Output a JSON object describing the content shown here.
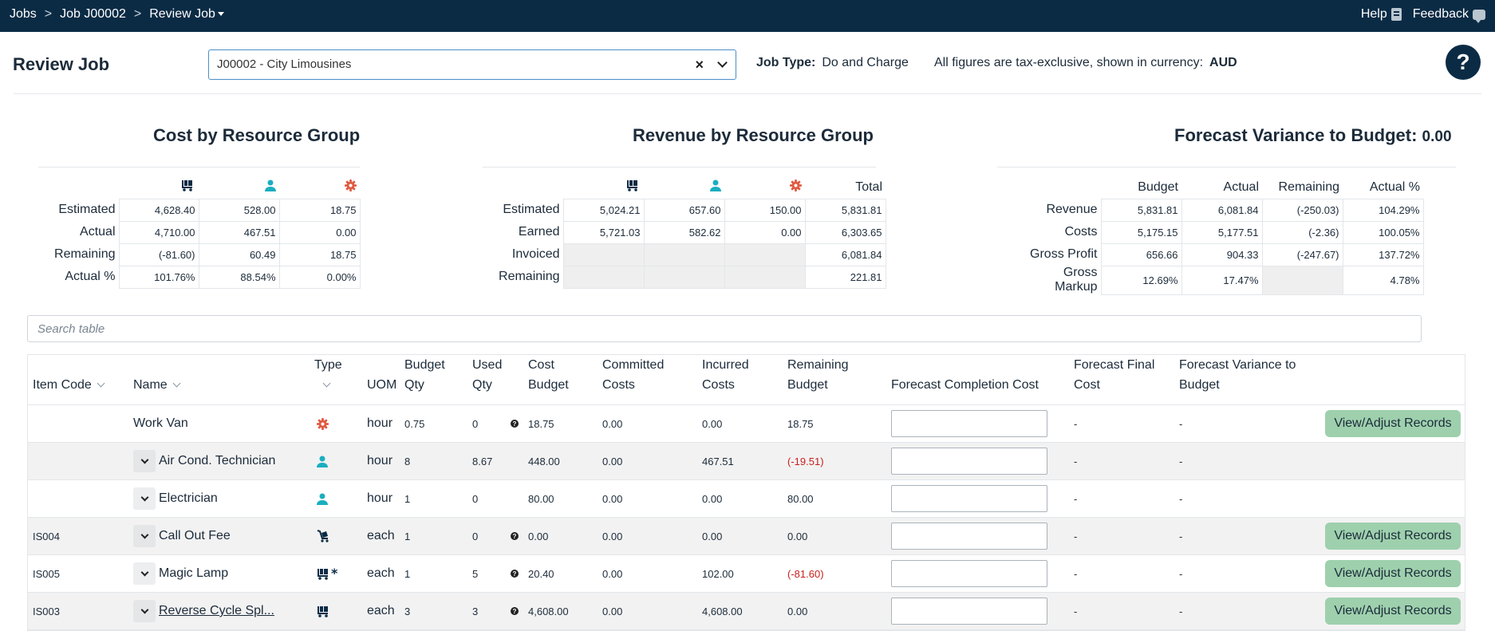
{
  "topbar": {
    "breadcrumbs": [
      "Jobs",
      "Job J00002",
      "Review Job"
    ],
    "separator": ">",
    "help_label": "Help",
    "feedback_label": "Feedback"
  },
  "header": {
    "title": "Review Job",
    "job_select_value": "J00002 - City Limousines",
    "clear_symbol": "×",
    "job_type_label": "Job Type:",
    "job_type_value": "Do and Charge",
    "figures_note": "All figures are tax-exclusive, shown in currency:",
    "currency": "AUD",
    "help_symbol": "?"
  },
  "colors": {
    "topbar": "#0b2b45",
    "vehicle_icon": "#0b2b45",
    "person_icon": "#1aaec0",
    "gear_icon": "#e05a42",
    "negative": "#c8201e",
    "button_green": "#9ed0ad"
  },
  "cost_summary": {
    "title": "Cost by Resource Group",
    "column_icons": [
      "vehicle-icon",
      "person-icon",
      "gear-icon"
    ],
    "rows": [
      {
        "label": "Estimated",
        "values": [
          "4,628.40",
          "528.00",
          "18.75"
        ]
      },
      {
        "label": "Actual",
        "values": [
          "4,710.00",
          "467.51",
          "0.00"
        ]
      },
      {
        "label": "Remaining",
        "values": [
          "(-81.60)",
          "60.49",
          "18.75"
        ]
      },
      {
        "label": "Actual %",
        "values": [
          "101.76%",
          "88.54%",
          "0.00%"
        ]
      }
    ]
  },
  "revenue_summary": {
    "title": "Revenue by Resource Group",
    "column_icons": [
      "vehicle-icon",
      "person-icon",
      "gear-icon"
    ],
    "total_label": "Total",
    "rows": [
      {
        "label": "Estimated",
        "values": [
          "5,024.21",
          "657.60",
          "150.00",
          "5,831.81"
        ]
      },
      {
        "label": "Earned",
        "values": [
          "5,721.03",
          "582.62",
          "0.00",
          "6,303.65"
        ]
      },
      {
        "label": "Invoiced",
        "values": [
          "",
          "",
          "",
          "6,081.84"
        ]
      },
      {
        "label": "Remaining",
        "values": [
          "",
          "",
          "",
          "221.81"
        ]
      }
    ]
  },
  "forecast_summary": {
    "title": "Forecast Variance to Budget:",
    "title_value": "0.00",
    "columns": [
      "Budget",
      "Actual",
      "Remaining",
      "Actual %"
    ],
    "rows": [
      {
        "label": "Revenue",
        "values": [
          "5,831.81",
          "6,081.84",
          "(-250.03)",
          "104.29%"
        ]
      },
      {
        "label": "Costs",
        "values": [
          "5,175.15",
          "5,177.51",
          "(-2.36)",
          "100.05%"
        ]
      },
      {
        "label": "Gross Profit",
        "values": [
          "656.66",
          "904.33",
          "(-247.67)",
          "137.72%"
        ]
      },
      {
        "label": "Gross Markup",
        "values": [
          "12.69%",
          "17.47%",
          "",
          "4.78%"
        ]
      }
    ]
  },
  "search": {
    "placeholder": "Search table"
  },
  "table": {
    "headers": {
      "item_code": "Item Code",
      "name": "Name",
      "type": "Type",
      "uom": "UOM",
      "budget_qty_1": "Budget",
      "budget_qty_2": "Qty",
      "used_qty_1": "Used",
      "used_qty_2": "Qty",
      "cost_budget_1": "Cost",
      "cost_budget_2": "Budget",
      "committed_1": "Committed",
      "committed_2": "Costs",
      "incurred_1": "Incurred",
      "incurred_2": "Costs",
      "remaining_1": "Remaining",
      "remaining_2": "Budget",
      "forecast_completion": "Forecast Completion Cost",
      "forecast_final_1": "Forecast Final",
      "forecast_final_2": "Cost",
      "forecast_variance_1": "Forecast Variance to",
      "forecast_variance_2": "Budget"
    },
    "view_button_label": "View/Adjust Records",
    "rows": [
      {
        "item_code": "",
        "name": "Work Van",
        "type_icon": "gear-icon",
        "uom": "hour",
        "budget_qty": "0.75",
        "used_qty": "0",
        "cost_budget": "18.75",
        "committed": "0.00",
        "incurred": "0.00",
        "remaining": "18.75",
        "forecast_final": "-",
        "forecast_variance": "-"
      },
      {
        "item_code": "",
        "name": "Air Cond. Technician",
        "type_icon": "person-icon",
        "uom": "hour",
        "budget_qty": "8",
        "used_qty": "8.67",
        "cost_budget": "448.00",
        "committed": "0.00",
        "incurred": "467.51",
        "remaining": "(-19.51)",
        "forecast_final": "-",
        "forecast_variance": "-"
      },
      {
        "item_code": "",
        "name": "Electrician",
        "type_icon": "person-icon",
        "uom": "hour",
        "budget_qty": "1",
        "used_qty": "0",
        "cost_budget": "80.00",
        "committed": "0.00",
        "incurred": "0.00",
        "remaining": "80.00",
        "forecast_final": "-",
        "forecast_variance": "-"
      },
      {
        "item_code": "IS004",
        "name": "Call Out Fee",
        "type_icon": "service-trolley-icon",
        "uom": "each",
        "budget_qty": "1",
        "used_qty": "0",
        "cost_budget": "0.00",
        "committed": "0.00",
        "incurred": "0.00",
        "remaining": "0.00",
        "forecast_final": "-",
        "forecast_variance": "-"
      },
      {
        "item_code": "IS005",
        "name": "Magic Lamp",
        "type_icon": "vehicle-star-icon",
        "uom": "each",
        "budget_qty": "1",
        "used_qty": "5",
        "cost_budget": "20.40",
        "committed": "0.00",
        "incurred": "102.00",
        "remaining": "(-81.60)",
        "forecast_final": "-",
        "forecast_variance": "-"
      },
      {
        "item_code": "IS003",
        "name": "Reverse Cycle Spl...",
        "type_icon": "vehicle-icon",
        "uom": "each",
        "budget_qty": "3",
        "used_qty": "3",
        "cost_budget": "4,608.00",
        "committed": "0.00",
        "incurred": "4,608.00",
        "remaining": "0.00",
        "forecast_final": "-",
        "forecast_variance": "-"
      }
    ]
  }
}
